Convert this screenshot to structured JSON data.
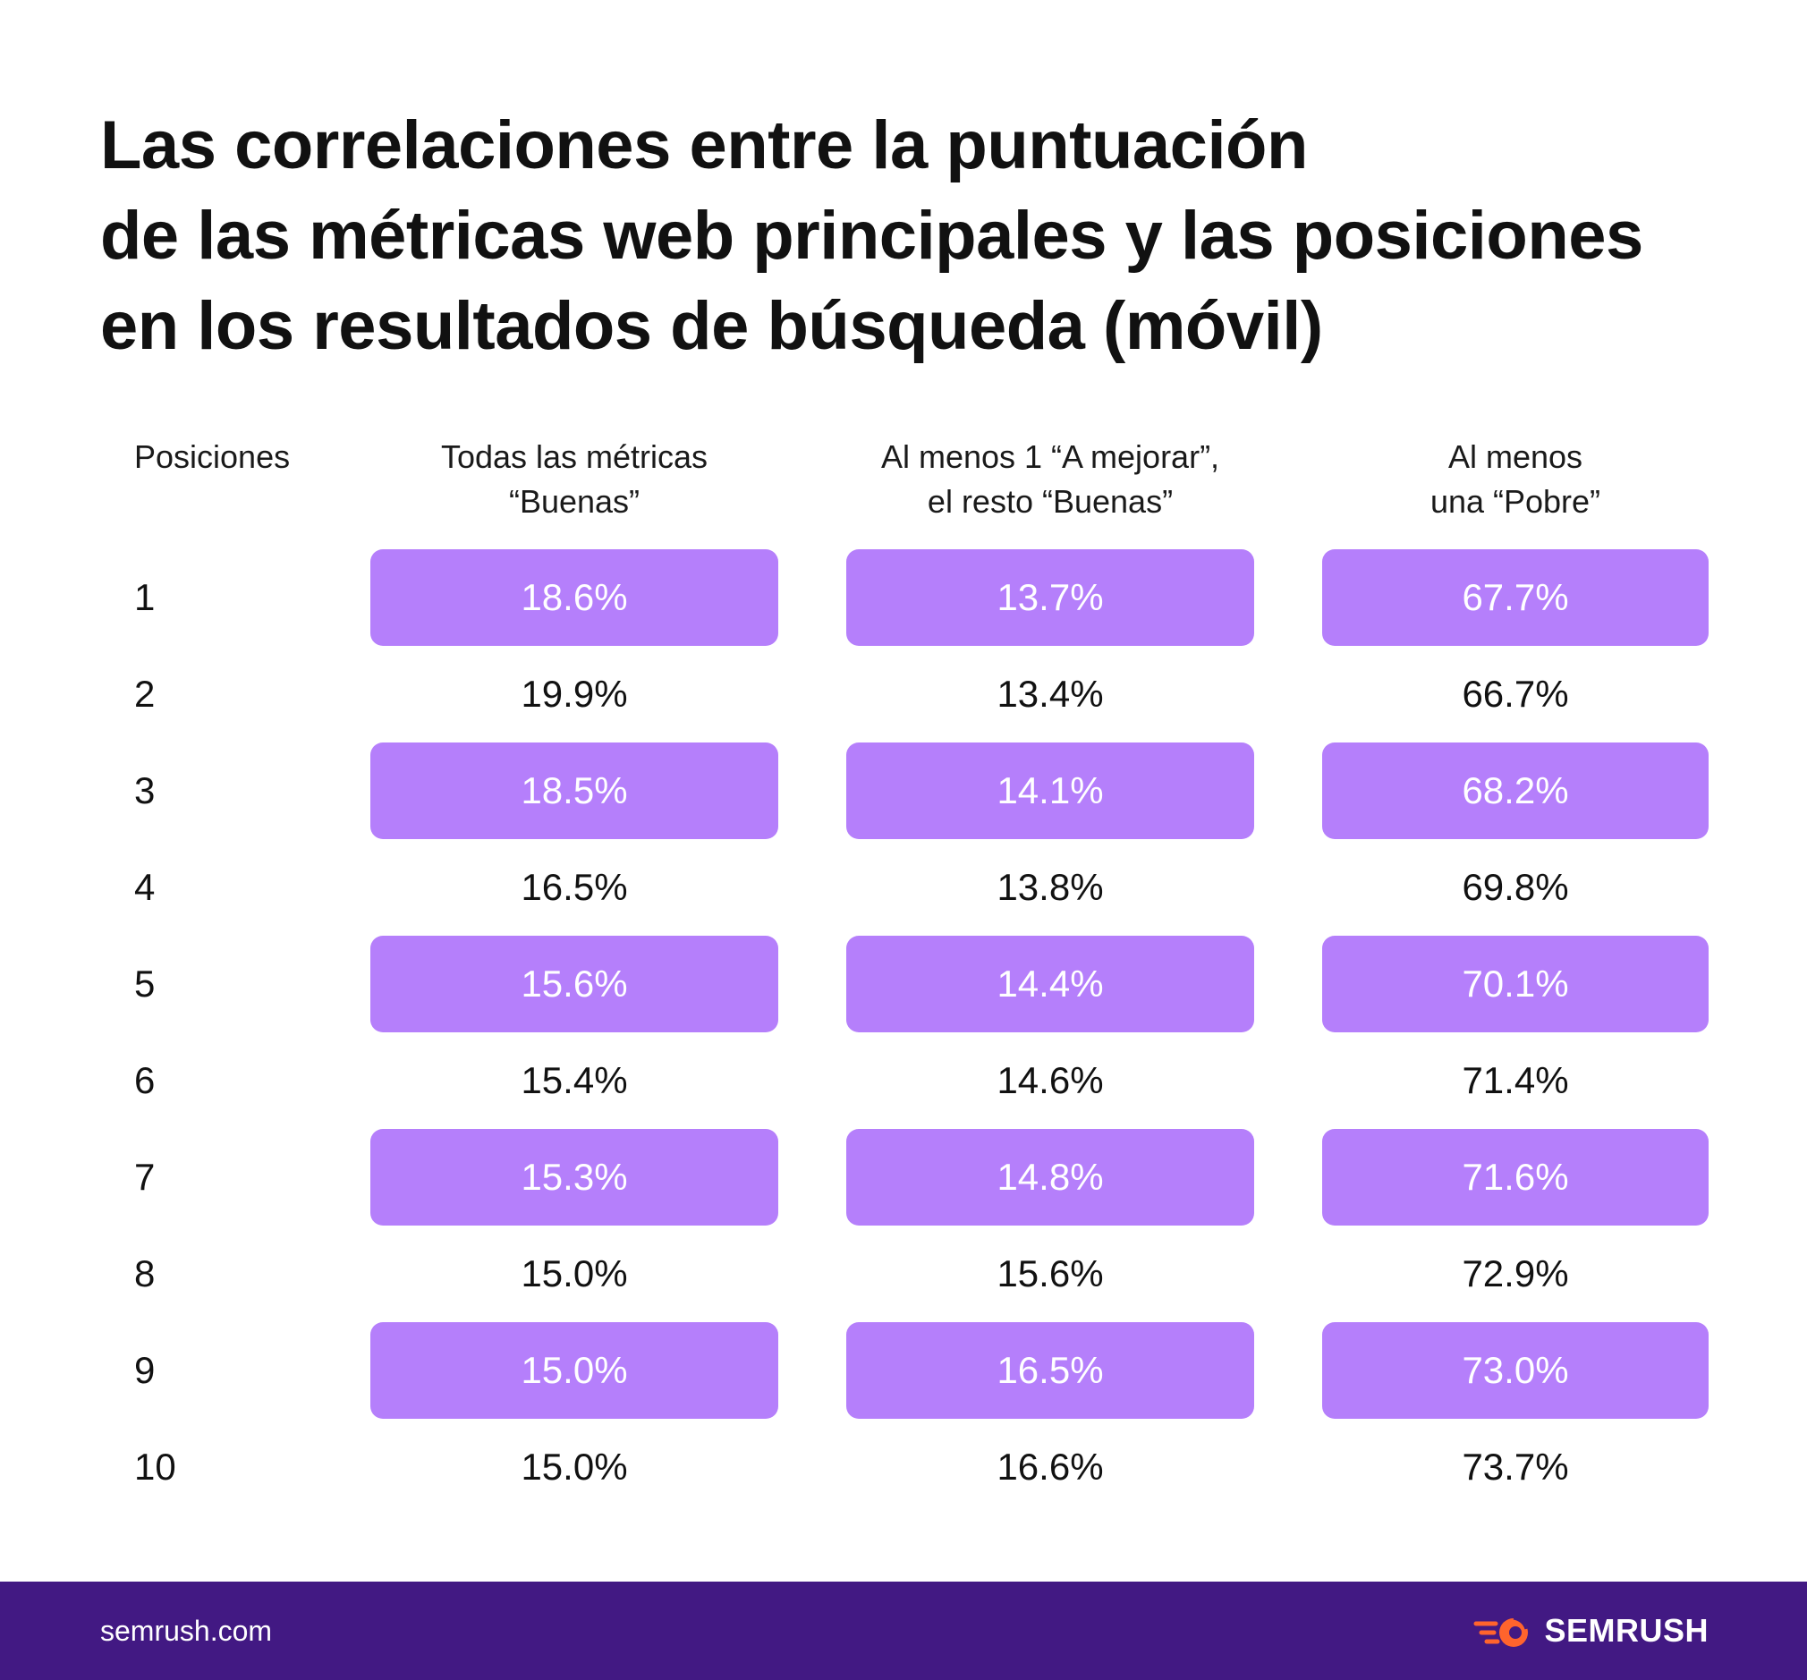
{
  "colors": {
    "highlight": "#b57ffb",
    "footer": "#421983",
    "logo_orange": "#ff642d"
  },
  "chart_data": {
    "type": "table",
    "title_lines": [
      "Las correlaciones entre la puntuación",
      "de las métricas web principales y las posiciones",
      "en los resultados de búsqueda (móvil)"
    ],
    "position_header": "Posiciones",
    "columns": [
      {
        "header_lines": [
          "Todas las métricas",
          "“Buenas”"
        ]
      },
      {
        "header_lines": [
          "Al menos 1 “A mejorar”,",
          "el resto “Buenas”"
        ]
      },
      {
        "header_lines": [
          "Al menos",
          "una “Pobre”"
        ]
      }
    ],
    "rows": [
      {
        "position": "1",
        "values": [
          "18.6%",
          "13.7%",
          "67.7%"
        ]
      },
      {
        "position": "2",
        "values": [
          "19.9%",
          "13.4%",
          "66.7%"
        ]
      },
      {
        "position": "3",
        "values": [
          "18.5%",
          "14.1%",
          "68.2%"
        ]
      },
      {
        "position": "4",
        "values": [
          "16.5%",
          "13.8%",
          "69.8%"
        ]
      },
      {
        "position": "5",
        "values": [
          "15.6%",
          "14.4%",
          "70.1%"
        ]
      },
      {
        "position": "6",
        "values": [
          "15.4%",
          "14.6%",
          "71.4%"
        ]
      },
      {
        "position": "7",
        "values": [
          "15.3%",
          "14.8%",
          "71.6%"
        ]
      },
      {
        "position": "8",
        "values": [
          "15.0%",
          "15.6%",
          "72.9%"
        ]
      },
      {
        "position": "9",
        "values": [
          "15.0%",
          "16.5%",
          "73.0%"
        ]
      },
      {
        "position": "10",
        "values": [
          "15.0%",
          "16.6%",
          "73.7%"
        ]
      }
    ]
  },
  "footer": {
    "site": "semrush.com",
    "brand": "SEMRUSH",
    "brand_icon": "semrush-fire-icon"
  }
}
